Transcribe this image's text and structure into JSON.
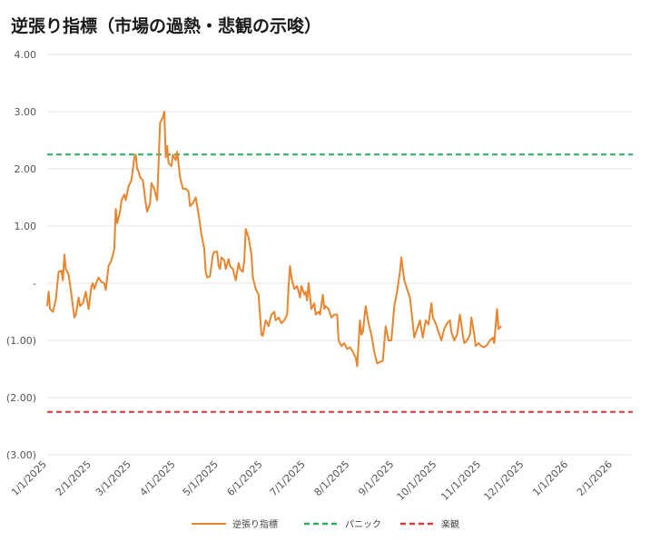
{
  "title": "逆張り指標（市場の過熱・悲観の示唆）",
  "colors": {
    "series": "#e8852e",
    "panic": "#27ae60",
    "optimism": "#d63b3b",
    "grid": "#e6e6e6"
  },
  "chart_data": {
    "type": "line",
    "title": "逆張り指標（市場の過熱・悲観の示唆）",
    "ylim": [
      -3,
      4
    ],
    "y_ticks": [
      {
        "value": 4,
        "label": "4.00"
      },
      {
        "value": 3,
        "label": "3.00"
      },
      {
        "value": 2,
        "label": "2.00"
      },
      {
        "value": 1,
        "label": "1.00"
      },
      {
        "value": 0,
        "label": "-"
      },
      {
        "value": -1,
        "label": "(1.00)"
      },
      {
        "value": -2,
        "label": "(2.00)"
      },
      {
        "value": -3,
        "label": "(3.00)"
      }
    ],
    "xlim": [
      "2025-01-01",
      "2026-02-15"
    ],
    "x_ticks": [
      {
        "value": "2025-01-01",
        "label": "1/1/2025"
      },
      {
        "value": "2025-02-01",
        "label": "2/1/2025"
      },
      {
        "value": "2025-03-01",
        "label": "3/1/2025"
      },
      {
        "value": "2025-04-01",
        "label": "4/1/2025"
      },
      {
        "value": "2025-05-01",
        "label": "5/1/2025"
      },
      {
        "value": "2025-06-01",
        "label": "6/1/2025"
      },
      {
        "value": "2025-07-01",
        "label": "7/1/2025"
      },
      {
        "value": "2025-08-01",
        "label": "8/1/2025"
      },
      {
        "value": "2025-09-01",
        "label": "9/1/2025"
      },
      {
        "value": "2025-10-01",
        "label": "10/1/2025"
      },
      {
        "value": "2025-11-01",
        "label": "11/1/2025"
      },
      {
        "value": "2025-12-01",
        "label": "12/1/2025"
      },
      {
        "value": "2026-01-01",
        "label": "1/1/2026"
      },
      {
        "value": "2026-02-01",
        "label": "2/1/2026"
      }
    ],
    "grid": true,
    "legend_position": "bottom",
    "reference_lines": [
      {
        "name": "パニック",
        "value": 2.25,
        "style": "dashed"
      },
      {
        "name": "楽観",
        "value": -2.25,
        "style": "dashed"
      }
    ],
    "series": [
      {
        "name": "逆張り指標",
        "points": [
          [
            "2025-01-01",
            -0.4
          ],
          [
            "2025-01-02",
            -0.15
          ],
          [
            "2025-01-03",
            -0.45
          ],
          [
            "2025-01-05",
            -0.5
          ],
          [
            "2025-01-07",
            -0.3
          ],
          [
            "2025-01-09",
            0.2
          ],
          [
            "2025-01-11",
            0.22
          ],
          [
            "2025-01-12",
            0.05
          ],
          [
            "2025-01-13",
            0.5
          ],
          [
            "2025-01-14",
            0.25
          ],
          [
            "2025-01-16",
            0.15
          ],
          [
            "2025-01-18",
            -0.2
          ],
          [
            "2025-01-20",
            -0.6
          ],
          [
            "2025-01-21",
            -0.55
          ],
          [
            "2025-01-23",
            -0.25
          ],
          [
            "2025-01-24",
            -0.4
          ],
          [
            "2025-01-26",
            -0.35
          ],
          [
            "2025-01-28",
            -0.15
          ],
          [
            "2025-01-29",
            -0.3
          ],
          [
            "2025-01-30",
            -0.45
          ],
          [
            "2025-02-01",
            -0.05
          ],
          [
            "2025-02-02",
            0.0
          ],
          [
            "2025-02-03",
            -0.1
          ],
          [
            "2025-02-05",
            0.05
          ],
          [
            "2025-02-06",
            0.1
          ],
          [
            "2025-02-08",
            0.02
          ],
          [
            "2025-02-10",
            0.0
          ],
          [
            "2025-02-11",
            -0.12
          ],
          [
            "2025-02-13",
            0.3
          ],
          [
            "2025-02-15",
            0.4
          ],
          [
            "2025-02-17",
            0.6
          ],
          [
            "2025-02-18",
            1.3
          ],
          [
            "2025-02-19",
            1.05
          ],
          [
            "2025-02-21",
            1.25
          ],
          [
            "2025-02-22",
            1.45
          ],
          [
            "2025-02-24",
            1.55
          ],
          [
            "2025-02-25",
            1.45
          ],
          [
            "2025-02-27",
            1.7
          ],
          [
            "2025-03-01",
            1.8
          ],
          [
            "2025-03-03",
            2.2
          ],
          [
            "2025-03-04",
            2.25
          ],
          [
            "2025-03-05",
            2.0
          ],
          [
            "2025-03-06",
            1.95
          ],
          [
            "2025-03-07",
            1.85
          ],
          [
            "2025-03-09",
            1.8
          ],
          [
            "2025-03-11",
            1.4
          ],
          [
            "2025-03-12",
            1.25
          ],
          [
            "2025-03-14",
            1.4
          ],
          [
            "2025-03-15",
            1.75
          ],
          [
            "2025-03-17",
            1.65
          ],
          [
            "2025-03-19",
            1.45
          ],
          [
            "2025-03-20",
            2.1
          ],
          [
            "2025-03-21",
            2.8
          ],
          [
            "2025-03-23",
            2.9
          ],
          [
            "2025-03-24",
            3.0
          ],
          [
            "2025-03-25",
            2.2
          ],
          [
            "2025-03-26",
            2.4
          ],
          [
            "2025-03-27",
            2.1
          ],
          [
            "2025-03-29",
            2.05
          ],
          [
            "2025-03-30",
            2.25
          ],
          [
            "2025-04-01",
            2.15
          ],
          [
            "2025-04-02",
            2.3
          ],
          [
            "2025-04-04",
            1.85
          ],
          [
            "2025-04-06",
            1.65
          ],
          [
            "2025-04-08",
            1.65
          ],
          [
            "2025-04-10",
            1.6
          ],
          [
            "2025-04-11",
            1.35
          ],
          [
            "2025-04-13",
            1.4
          ],
          [
            "2025-04-15",
            1.5
          ],
          [
            "2025-04-17",
            1.2
          ],
          [
            "2025-04-19",
            0.85
          ],
          [
            "2025-04-21",
            0.6
          ],
          [
            "2025-04-22",
            0.2
          ],
          [
            "2025-04-23",
            0.1
          ],
          [
            "2025-04-25",
            0.12
          ],
          [
            "2025-04-27",
            0.5
          ],
          [
            "2025-04-28",
            0.55
          ],
          [
            "2025-04-30",
            0.55
          ],
          [
            "2025-05-01",
            0.3
          ],
          [
            "2025-05-02",
            0.25
          ],
          [
            "2025-05-03",
            0.45
          ],
          [
            "2025-05-05",
            0.4
          ],
          [
            "2025-05-06",
            0.25
          ],
          [
            "2025-05-08",
            0.42
          ],
          [
            "2025-05-09",
            0.3
          ],
          [
            "2025-05-11",
            0.25
          ],
          [
            "2025-05-12",
            0.15
          ],
          [
            "2025-05-13",
            0.05
          ],
          [
            "2025-05-15",
            0.35
          ],
          [
            "2025-05-16",
            0.25
          ],
          [
            "2025-05-18",
            0.2
          ],
          [
            "2025-05-19",
            0.4
          ],
          [
            "2025-05-20",
            0.95
          ],
          [
            "2025-05-22",
            0.8
          ],
          [
            "2025-05-24",
            0.5
          ],
          [
            "2025-05-25",
            0.1
          ],
          [
            "2025-05-27",
            -0.1
          ],
          [
            "2025-05-29",
            -0.2
          ],
          [
            "2025-05-31",
            -0.9
          ],
          [
            "2025-06-01",
            -0.92
          ],
          [
            "2025-06-03",
            -0.65
          ],
          [
            "2025-06-05",
            -0.75
          ],
          [
            "2025-06-07",
            -0.55
          ],
          [
            "2025-06-09",
            -0.5
          ],
          [
            "2025-06-10",
            -0.65
          ],
          [
            "2025-06-12",
            -0.6
          ],
          [
            "2025-06-14",
            -0.7
          ],
          [
            "2025-06-16",
            -0.65
          ],
          [
            "2025-06-18",
            -0.55
          ],
          [
            "2025-06-19",
            -0.05
          ],
          [
            "2025-06-20",
            0.3
          ],
          [
            "2025-06-21",
            0.1
          ],
          [
            "2025-06-23",
            -0.1
          ],
          [
            "2025-06-25",
            -0.05
          ],
          [
            "2025-06-27",
            -0.25
          ],
          [
            "2025-06-28",
            -0.05
          ],
          [
            "2025-06-30",
            -0.2
          ],
          [
            "2025-07-01",
            -0.15
          ],
          [
            "2025-07-02",
            -0.3
          ],
          [
            "2025-07-03",
            0.0
          ],
          [
            "2025-07-05",
            -0.45
          ],
          [
            "2025-07-07",
            -0.35
          ],
          [
            "2025-07-08",
            -0.55
          ],
          [
            "2025-07-10",
            -0.5
          ],
          [
            "2025-07-11",
            -0.55
          ],
          [
            "2025-07-13",
            -0.2
          ],
          [
            "2025-07-14",
            -0.45
          ],
          [
            "2025-07-15",
            -0.4
          ],
          [
            "2025-07-17",
            -0.45
          ],
          [
            "2025-07-19",
            -0.6
          ],
          [
            "2025-07-21",
            -0.55
          ],
          [
            "2025-07-23",
            -0.55
          ],
          [
            "2025-07-24",
            -1.0
          ],
          [
            "2025-07-26",
            -1.1
          ],
          [
            "2025-07-28",
            -1.05
          ],
          [
            "2025-07-30",
            -1.15
          ],
          [
            "2025-08-01",
            -1.12
          ],
          [
            "2025-08-03",
            -1.2
          ],
          [
            "2025-08-05",
            -1.3
          ],
          [
            "2025-08-06",
            -1.45
          ],
          [
            "2025-08-08",
            -0.65
          ],
          [
            "2025-08-09",
            -0.9
          ],
          [
            "2025-08-10",
            -0.85
          ],
          [
            "2025-08-12",
            -0.4
          ],
          [
            "2025-08-14",
            -0.7
          ],
          [
            "2025-08-16",
            -0.9
          ],
          [
            "2025-08-18",
            -1.2
          ],
          [
            "2025-08-20",
            -1.4
          ],
          [
            "2025-08-22",
            -1.38
          ],
          [
            "2025-08-24",
            -1.35
          ],
          [
            "2025-08-26",
            -0.75
          ],
          [
            "2025-08-28",
            -1.0
          ],
          [
            "2025-08-30",
            -1.0
          ],
          [
            "2025-09-01",
            -0.4
          ],
          [
            "2025-09-03",
            -0.15
          ],
          [
            "2025-09-05",
            0.2
          ],
          [
            "2025-09-06",
            0.45
          ],
          [
            "2025-09-08",
            0.05
          ],
          [
            "2025-09-10",
            -0.1
          ],
          [
            "2025-09-12",
            -0.25
          ],
          [
            "2025-09-14",
            -0.7
          ],
          [
            "2025-09-15",
            -0.95
          ],
          [
            "2025-09-17",
            -0.8
          ],
          [
            "2025-09-19",
            -0.65
          ],
          [
            "2025-09-21",
            -0.95
          ],
          [
            "2025-09-23",
            -0.65
          ],
          [
            "2025-09-25",
            -0.72
          ],
          [
            "2025-09-27",
            -0.35
          ],
          [
            "2025-09-28",
            -0.6
          ],
          [
            "2025-09-30",
            -0.7
          ],
          [
            "2025-10-02",
            -0.85
          ],
          [
            "2025-10-04",
            -1.0
          ],
          [
            "2025-10-06",
            -0.8
          ],
          [
            "2025-10-08",
            -0.7
          ],
          [
            "2025-10-10",
            -0.65
          ],
          [
            "2025-10-11",
            -0.85
          ],
          [
            "2025-10-13",
            -1.0
          ],
          [
            "2025-10-15",
            -0.9
          ],
          [
            "2025-10-17",
            -0.55
          ],
          [
            "2025-10-19",
            -0.9
          ],
          [
            "2025-10-20",
            -1.05
          ],
          [
            "2025-10-22",
            -1.0
          ],
          [
            "2025-10-24",
            -0.9
          ],
          [
            "2025-10-25",
            -0.6
          ],
          [
            "2025-10-27",
            -0.9
          ],
          [
            "2025-10-28",
            -1.1
          ],
          [
            "2025-10-30",
            -1.05
          ],
          [
            "2025-11-01",
            -1.1
          ],
          [
            "2025-11-03",
            -1.12
          ],
          [
            "2025-11-05",
            -1.08
          ],
          [
            "2025-11-07",
            -1.0
          ],
          [
            "2025-11-09",
            -0.95
          ],
          [
            "2025-11-10",
            -1.05
          ],
          [
            "2025-11-12",
            -0.45
          ],
          [
            "2025-11-13",
            -0.8
          ],
          [
            "2025-11-15",
            -0.75
          ]
        ]
      }
    ]
  },
  "legend": {
    "series_label": "逆張り指標",
    "panic_label": "パニック",
    "optimism_label": "楽観"
  }
}
